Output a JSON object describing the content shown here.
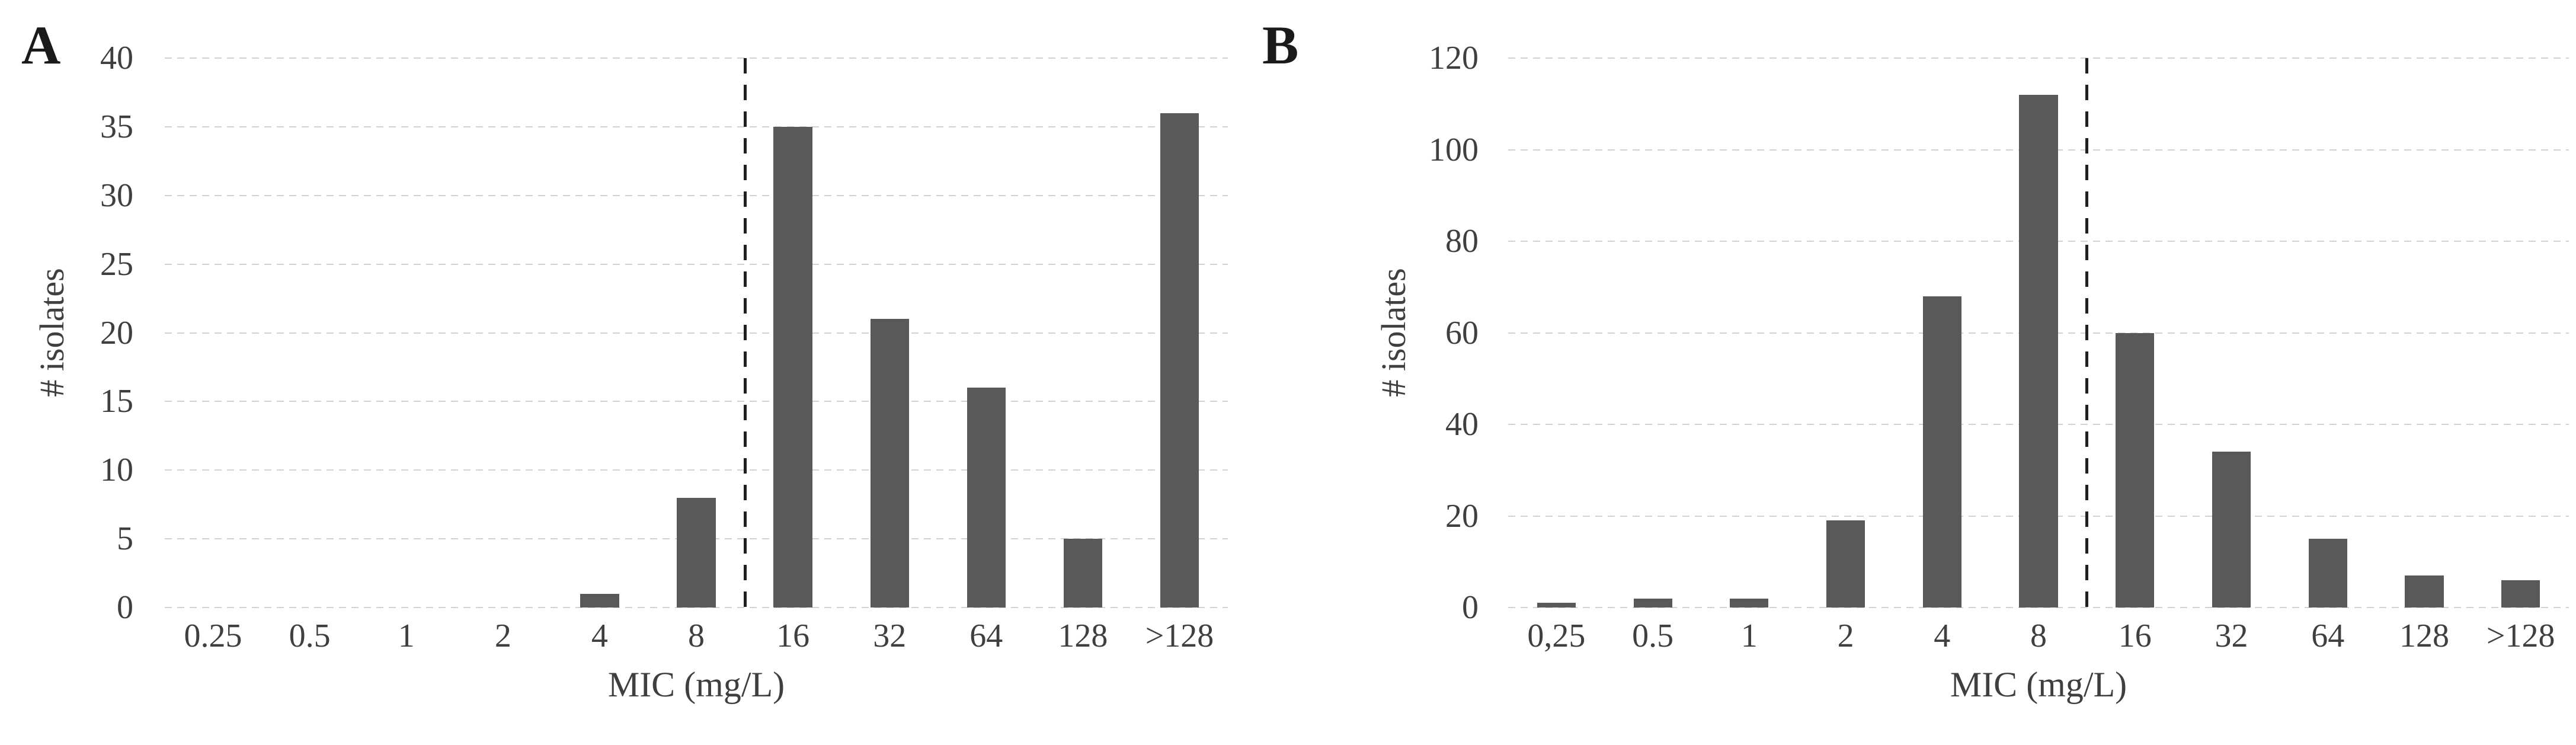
{
  "figure": {
    "panel_labels": [
      "A",
      "B"
    ]
  },
  "chart_data": [
    {
      "type": "bar",
      "panel_label": "A",
      "categories": [
        "0.25",
        "0.5",
        "1",
        "2",
        "4",
        "8",
        "16",
        "32",
        "64",
        "128",
        ">128"
      ],
      "values": [
        0,
        0,
        0,
        0,
        1,
        8,
        35,
        21,
        16,
        5,
        36
      ],
      "title": "",
      "xlabel": "MIC (mg/L)",
      "ylabel": "# isolates",
      "ylim": [
        0,
        40
      ],
      "yticks": [
        0,
        5,
        10,
        15,
        20,
        25,
        30,
        35,
        40
      ],
      "grid": "horizontal-dotted",
      "legend": "none",
      "cutoff_line": {
        "style": "vertical-dashed",
        "between": [
          "8",
          "16"
        ],
        "after_index": 5
      }
    },
    {
      "type": "bar",
      "panel_label": "B",
      "categories": [
        "0,25",
        "0.5",
        "1",
        "2",
        "4",
        "8",
        "16",
        "32",
        "64",
        "128",
        ">128"
      ],
      "values": [
        1,
        2,
        2,
        19,
        68,
        112,
        60,
        34,
        15,
        7,
        6
      ],
      "title": "",
      "xlabel": "MIC (mg/L)",
      "ylabel": "# isolates",
      "ylim": [
        0,
        120
      ],
      "yticks": [
        0,
        20,
        40,
        60,
        80,
        100,
        120
      ],
      "grid": "horizontal-dotted",
      "legend": "none",
      "cutoff_line": {
        "style": "vertical-dashed",
        "between": [
          "8",
          "16"
        ],
        "after_index": 5
      }
    }
  ],
  "colors": {
    "background": "#ffffff",
    "bar": "#595959",
    "gridline": "#d2d2d2",
    "tick_text": "#3f3f3f",
    "axis_title_text": "#3f3f3f",
    "panel_letter": "#1a1a1a",
    "cutoff_line": "#1f1f1f"
  }
}
